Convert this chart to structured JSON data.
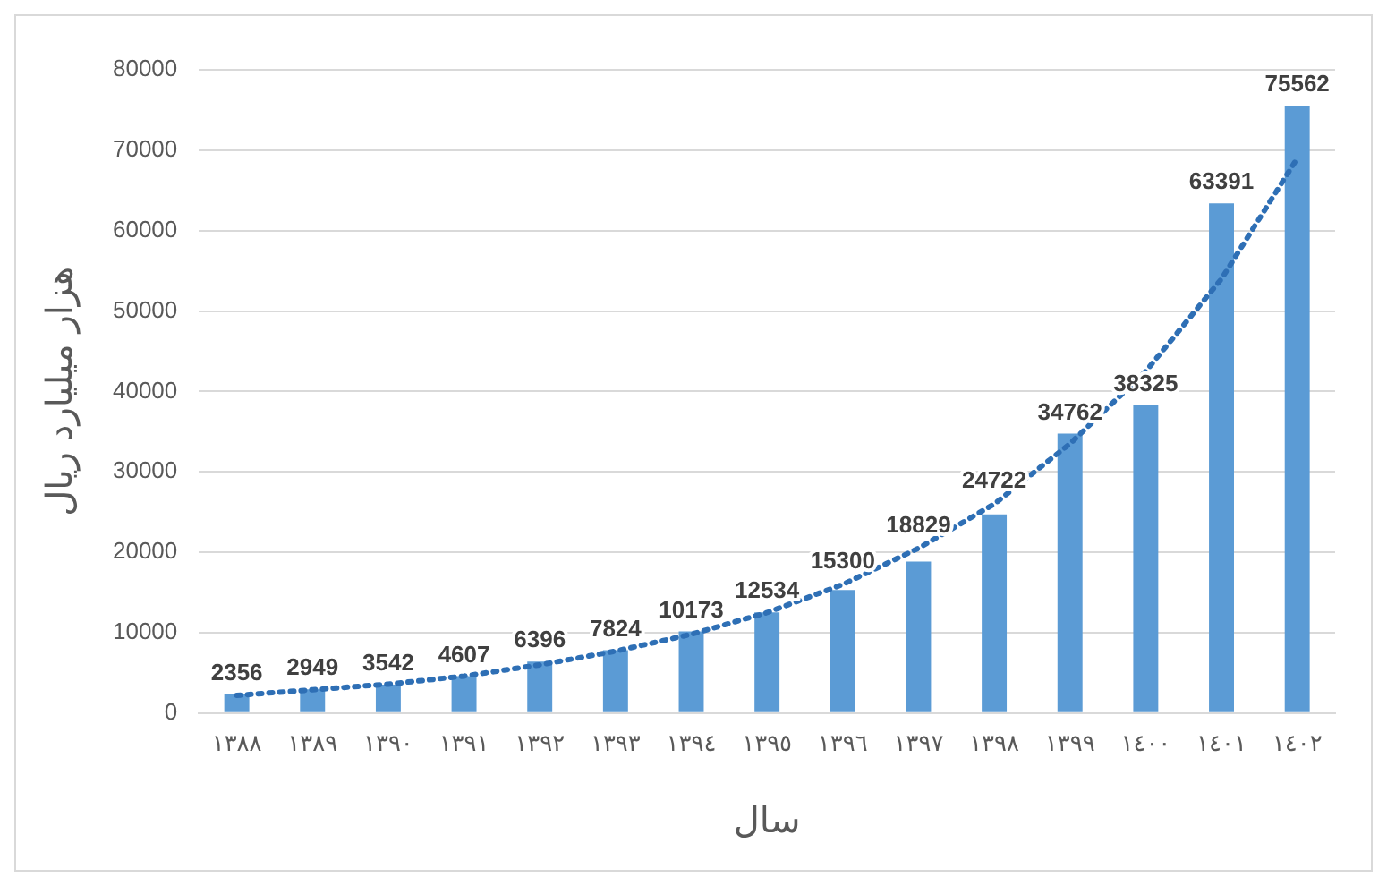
{
  "chart_data": {
    "type": "bar",
    "xlabel": "سال",
    "ylabel": "هزار میلیارد ریال",
    "categories": [
      "١٣٨٨",
      "١٣٨٩",
      "١٣٩٠",
      "١٣٩١",
      "١٣٩٢",
      "١٣٩٣",
      "١٣٩٤",
      "١٣٩٥",
      "١٣٩٦",
      "١٣٩٧",
      "١٣٩٨",
      "١٣٩٩",
      "١٤٠٠",
      "١٤٠١",
      "١٤٠٢"
    ],
    "series": [
      {
        "color": "#5b9bd5",
        "values": [
          2356,
          2949,
          3542,
          4607,
          6396,
          7824,
          10173,
          12534,
          15300,
          18829,
          24722,
          34762,
          38325,
          63391,
          75562
        ],
        "data_labels": true
      },
      {
        "type": "line",
        "color": "#2e6fb5",
        "line_style": "dotted",
        "marker": "none",
        "values": [
          2200,
          2900,
          3600,
          4600,
          6000,
          7700,
          9800,
          12500,
          16000,
          20500,
          26000,
          33500,
          42500,
          54000,
          69000
        ]
      }
    ],
    "ylim": [
      0,
      80000
    ],
    "yticks": [
      0,
      10000,
      20000,
      30000,
      40000,
      50000,
      60000,
      70000,
      80000
    ],
    "grid": "y",
    "legend": false
  }
}
